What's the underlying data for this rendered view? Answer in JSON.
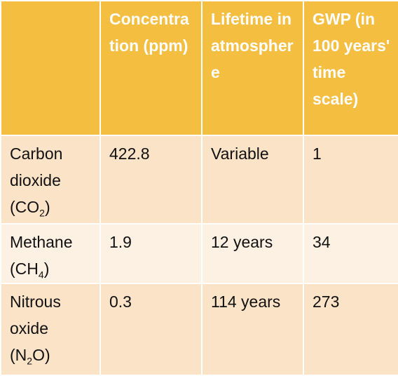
{
  "table": {
    "header": [
      "",
      "Concentration (ppm)",
      "Lifetime in atmosphere",
      "GWP (in 100 years' time scale)"
    ],
    "rows": [
      [
        {
          "text": "Carbon dioxide (CO",
          "sub": "2",
          "after": ")"
        },
        "422.8",
        "Variable",
        "1"
      ],
      [
        {
          "text": "Methane (CH",
          "sub": "4",
          "after": ")"
        },
        "1.9",
        "12 years",
        "34"
      ],
      [
        {
          "text": "Nitrous oxide (N",
          "sub": "2",
          "after": "O)"
        },
        "0.3",
        "114 years",
        "273"
      ]
    ]
  }
}
